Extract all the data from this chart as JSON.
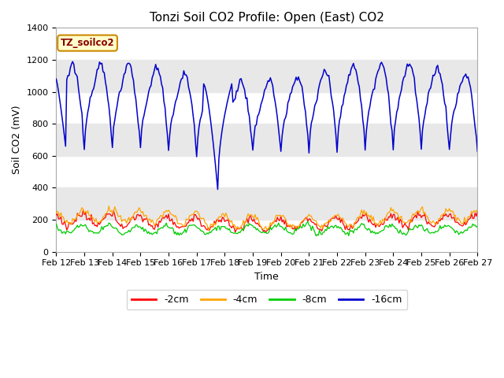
{
  "title": "Tonzi Soil CO2 Profile: Open (East) CO2",
  "xlabel": "Time",
  "ylabel": "Soil CO2 (mV)",
  "ylim": [
    0,
    1400
  ],
  "xlim": [
    0,
    360
  ],
  "x_tick_labels": [
    "Feb 12",
    "Feb 13",
    "Feb 14",
    "Feb 15",
    "Feb 16",
    "Feb 17",
    "Feb 18",
    "Feb 19",
    "Feb 20",
    "Feb 21",
    "Feb 22",
    "Feb 23",
    "Feb 24",
    "Feb 25",
    "Feb 26",
    "Feb 27"
  ],
  "x_tick_positions": [
    0,
    24,
    48,
    72,
    96,
    120,
    144,
    168,
    192,
    216,
    240,
    264,
    288,
    312,
    336,
    360
  ],
  "colors": {
    "minus2cm": "#ff0000",
    "minus4cm": "#ffa500",
    "minus8cm": "#00cc00",
    "minus16cm": "#0000cc"
  },
  "legend_labels": [
    "-2cm",
    "-4cm",
    "-8cm",
    "-16cm"
  ],
  "band_color": "#e8e8e8",
  "annotation_text": "TZ_soilco2",
  "annotation_box_facecolor": "#ffffcc",
  "annotation_box_edgecolor": "#cc8800",
  "title_fontsize": 11,
  "label_fontsize": 9,
  "tick_fontsize": 8
}
